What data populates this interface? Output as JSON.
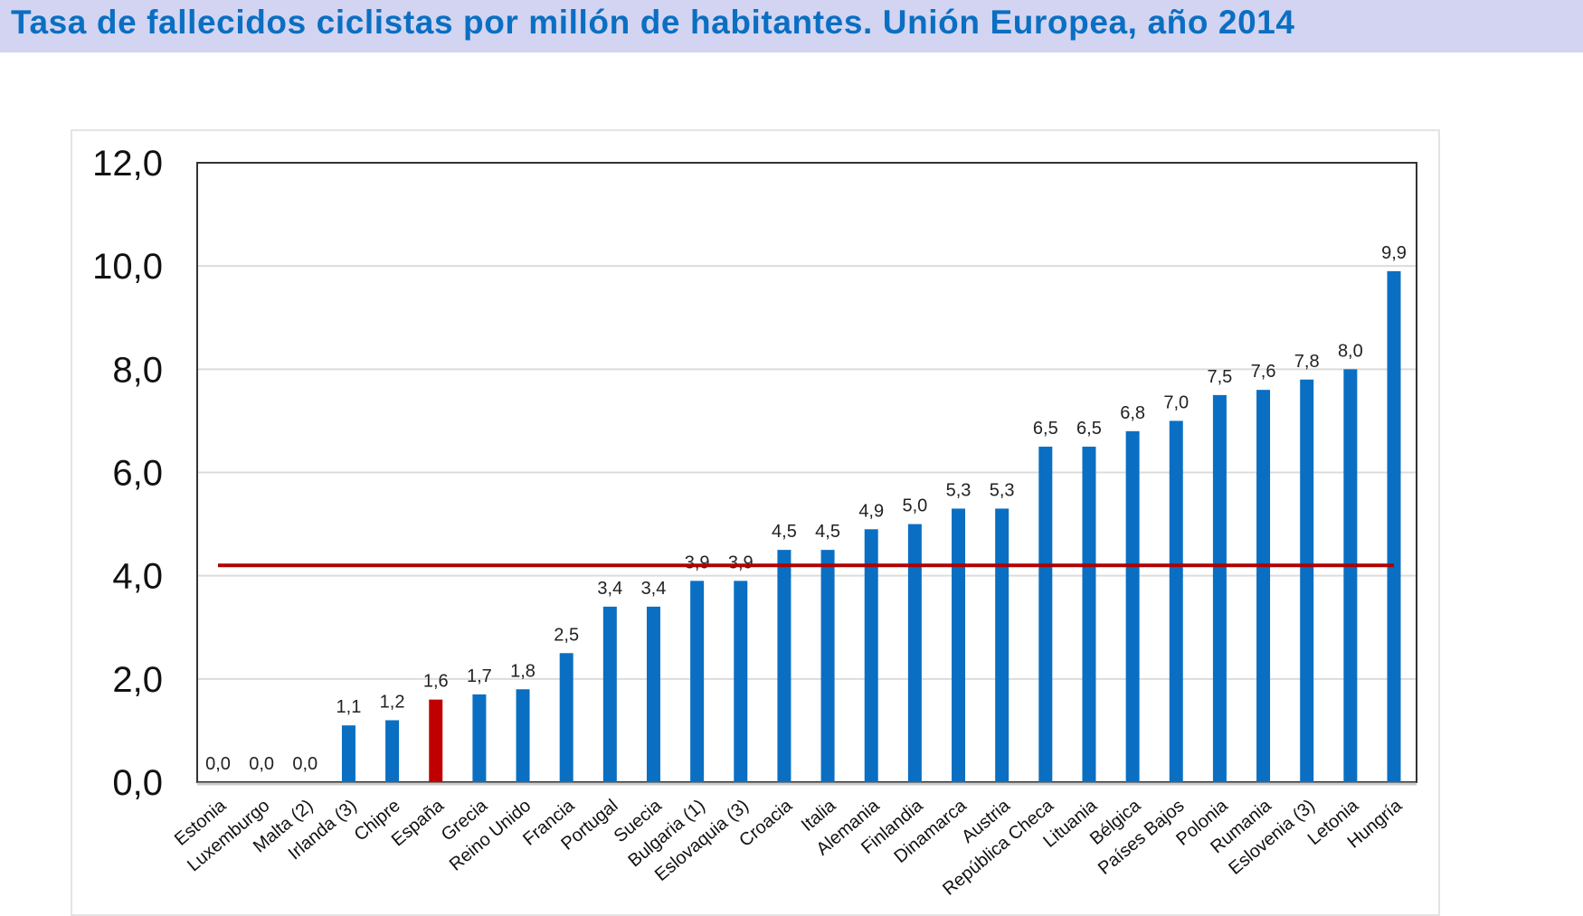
{
  "header": {
    "title": "Tasa de fallecidos ciclistas por millón de habitantes. Unión Europea,  año 2014"
  },
  "chart_data": {
    "type": "bar",
    "title": "Tasa de fallecidos ciclistas por millón de habitantes. Unión Europea,  año 2014",
    "categories": [
      "Estonia",
      "Luxemburgo",
      "Malta (2)",
      "Irlanda (3)",
      "Chipre",
      "España",
      "Grecia",
      "Reino Unido",
      "Francia",
      "Portugal",
      "Suecia",
      "Bulgaria (1)",
      "Eslovaquia (3)",
      "Croacia",
      "Italia",
      "Alemania",
      "Finlandia",
      "Dinamarca",
      "Austria",
      "República Checa",
      "Lituania",
      "Bélgica",
      "Países Bajos",
      "Polonia",
      "Rumania",
      "Eslovenia (3)",
      "Letonia",
      "Hungría"
    ],
    "values": [
      0.0,
      0.0,
      0.0,
      1.1,
      1.2,
      1.6,
      1.7,
      1.8,
      2.5,
      3.4,
      3.4,
      3.9,
      3.9,
      4.5,
      4.5,
      4.9,
      5.0,
      5.3,
      5.3,
      6.5,
      6.5,
      6.8,
      7.0,
      7.5,
      7.6,
      7.8,
      8.0,
      9.9
    ],
    "value_labels": [
      "0,0",
      "0,0",
      "0,0",
      "1,1",
      "1,2",
      "1,6",
      "1,7",
      "1,8",
      "2,5",
      "3,4",
      "3,4",
      "3,9",
      "3,9",
      "4,5",
      "4,5",
      "4,9",
      "5,0",
      "5,3",
      "5,3",
      "6,5",
      "6,5",
      "6,8",
      "7,0",
      "7,5",
      "7,6",
      "7,8",
      "8,0",
      "9,9"
    ],
    "highlight_category": "España",
    "reference_line": 4.2,
    "ylim": [
      0,
      12
    ],
    "yticks": [
      "0,0",
      "2,0",
      "4,0",
      "6,0",
      "8,0",
      "10,0",
      "12,0"
    ],
    "grid": true,
    "xlabel": "",
    "ylabel": "",
    "colors": {
      "bar": "#0a6fc2",
      "highlight": "#c00000",
      "reference_line": "#b00000",
      "grid": "#dcdcdc"
    }
  }
}
